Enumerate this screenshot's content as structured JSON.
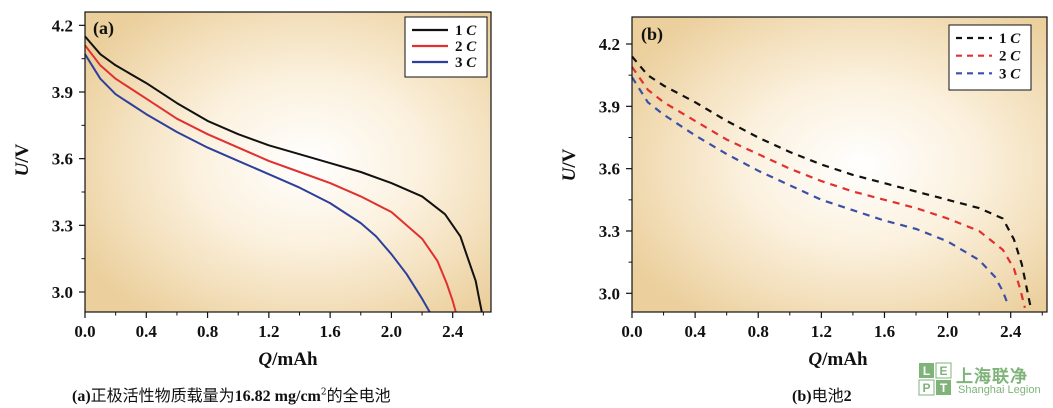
{
  "chart_data": [
    {
      "type": "line",
      "panel_label": "(a)",
      "xlabel_italic": "Q",
      "xlabel_rest": "/mAh",
      "ylabel_italic": "U",
      "ylabel_rest": "/V",
      "xlim": [
        0.0,
        2.65
      ],
      "ylim": [
        2.91,
        4.26
      ],
      "x_ticks": [
        "0.0",
        "0.4",
        "0.8",
        "1.2",
        "1.6",
        "2.0",
        "2.4"
      ],
      "y_ticks": [
        "3.0",
        "3.3",
        "3.6",
        "3.9",
        "4.2"
      ],
      "line_style": "solid",
      "background": "radial gradient, white center to tan (#ecd3a3) edges",
      "legend_position": "top-right",
      "series": [
        {
          "name": "1 C",
          "legend_num": "1",
          "legend_unit": "C",
          "color": "#111111",
          "x": [
            0.0,
            0.1,
            0.2,
            0.4,
            0.6,
            0.8,
            1.0,
            1.2,
            1.4,
            1.6,
            1.8,
            2.0,
            2.2,
            2.35,
            2.45,
            2.5,
            2.55,
            2.57,
            2.59
          ],
          "y": [
            4.15,
            4.07,
            4.02,
            3.94,
            3.85,
            3.77,
            3.71,
            3.66,
            3.62,
            3.58,
            3.54,
            3.49,
            3.43,
            3.35,
            3.25,
            3.15,
            3.05,
            2.98,
            2.91
          ]
        },
        {
          "name": "2 C",
          "legend_num": "2",
          "legend_unit": "C",
          "color": "#e03030",
          "x": [
            0.0,
            0.1,
            0.2,
            0.4,
            0.6,
            0.8,
            1.0,
            1.2,
            1.4,
            1.6,
            1.8,
            2.0,
            2.2,
            2.3,
            2.36,
            2.4,
            2.42
          ],
          "y": [
            4.11,
            4.02,
            3.96,
            3.87,
            3.78,
            3.71,
            3.65,
            3.59,
            3.54,
            3.49,
            3.43,
            3.36,
            3.24,
            3.14,
            3.04,
            2.96,
            2.91
          ]
        },
        {
          "name": "3 C",
          "legend_num": "3",
          "legend_unit": "C",
          "color": "#2d3f9c",
          "x": [
            0.0,
            0.1,
            0.2,
            0.4,
            0.6,
            0.8,
            1.0,
            1.2,
            1.4,
            1.6,
            1.8,
            1.9,
            2.0,
            2.1,
            2.2,
            2.25
          ],
          "y": [
            4.07,
            3.96,
            3.89,
            3.8,
            3.72,
            3.65,
            3.59,
            3.53,
            3.47,
            3.4,
            3.31,
            3.25,
            3.17,
            3.08,
            2.97,
            2.91
          ]
        }
      ]
    },
    {
      "type": "line",
      "panel_label": "(b)",
      "xlabel_italic": "Q",
      "xlabel_rest": "/mAh",
      "ylabel_italic": "U",
      "ylabel_rest": "/V",
      "xlim": [
        0.0,
        2.63
      ],
      "ylim": [
        2.91,
        4.33
      ],
      "x_ticks": [
        "0.0",
        "0.4",
        "0.8",
        "1.2",
        "1.6",
        "2.0",
        "2.4"
      ],
      "y_ticks": [
        "3.0",
        "3.3",
        "3.6",
        "3.9",
        "4.2"
      ],
      "line_style": "dashed",
      "background": "radial gradient, white center to tan (#ecd3a3) edges",
      "legend_position": "top-right",
      "series": [
        {
          "name": "1 C",
          "legend_num": "1",
          "legend_unit": "C",
          "color": "#111111",
          "x": [
            0.0,
            0.1,
            0.2,
            0.4,
            0.6,
            0.8,
            1.0,
            1.2,
            1.4,
            1.6,
            1.8,
            2.0,
            2.2,
            2.35,
            2.42,
            2.47,
            2.5,
            2.53
          ],
          "y": [
            4.14,
            4.05,
            4.0,
            3.92,
            3.83,
            3.75,
            3.68,
            3.62,
            3.57,
            3.53,
            3.49,
            3.45,
            3.41,
            3.36,
            3.26,
            3.14,
            3.03,
            2.92
          ]
        },
        {
          "name": "2 C",
          "legend_num": "2",
          "legend_unit": "C",
          "color": "#e03030",
          "x": [
            0.0,
            0.1,
            0.2,
            0.4,
            0.6,
            0.8,
            1.0,
            1.2,
            1.4,
            1.6,
            1.8,
            2.0,
            2.2,
            2.35,
            2.42,
            2.46,
            2.49
          ],
          "y": [
            4.09,
            3.98,
            3.92,
            3.83,
            3.74,
            3.67,
            3.6,
            3.54,
            3.49,
            3.45,
            3.41,
            3.36,
            3.3,
            3.21,
            3.12,
            3.02,
            2.93
          ]
        },
        {
          "name": "3 C",
          "legend_num": "3",
          "legend_unit": "C",
          "color": "#3b4fa8",
          "x": [
            0.0,
            0.1,
            0.2,
            0.4,
            0.6,
            0.8,
            1.0,
            1.2,
            1.4,
            1.6,
            1.8,
            2.0,
            2.2,
            2.3,
            2.35,
            2.38
          ],
          "y": [
            4.04,
            3.92,
            3.86,
            3.76,
            3.67,
            3.59,
            3.52,
            3.45,
            3.4,
            3.35,
            3.31,
            3.25,
            3.16,
            3.08,
            3.01,
            2.95
          ]
        }
      ]
    }
  ],
  "captions": {
    "a_label": "(a)",
    "a_text_1": "正极活性物质载量为",
    "a_value": "16.82 mg/cm",
    "a_sup": "2",
    "a_text_2": "的全电池",
    "b_label": "(b)",
    "b_text": "电池",
    "b_num": "2"
  },
  "logo": {
    "letters": [
      "L",
      "E",
      "P",
      "T"
    ],
    "cn": "上海联净",
    "en": "Shanghai Legion",
    "color": "#7fb37a"
  }
}
